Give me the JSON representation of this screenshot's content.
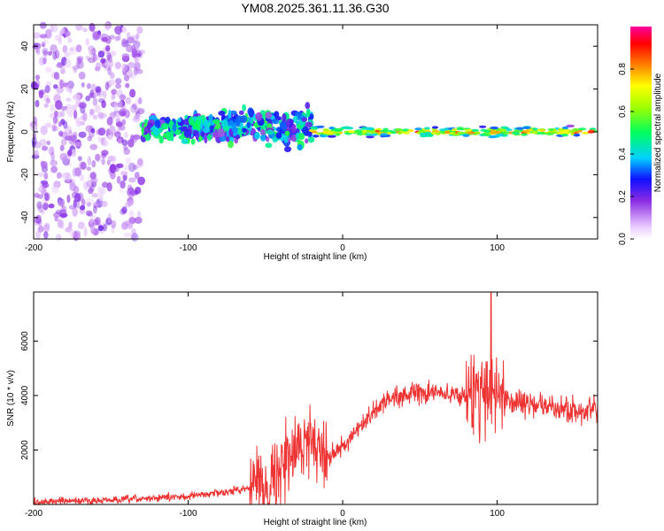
{
  "title": "YM08.2025.361.11.36.G30",
  "chart_data": [
    {
      "type": "heatmap",
      "name": "spectrogram",
      "xlabel": "Height of straight line (km)",
      "ylabel": "Frequency (Hz)",
      "xlim": [
        -200,
        165
      ],
      "ylim": [
        -50,
        50
      ],
      "xticks": [
        -200,
        -100,
        0,
        100
      ],
      "yticks": [
        -40,
        -20,
        0,
        20,
        40
      ],
      "signal_band": [
        {
          "x_start": -200,
          "x_end": -130,
          "center_hz": 0,
          "spread_hz": 50,
          "amplitude": 0.12
        },
        {
          "x_start": -130,
          "x_end": -20,
          "center_hz": 2,
          "spread_hz": 8,
          "amplitude": 0.3
        },
        {
          "x_start": -20,
          "x_end": 165,
          "center_hz": 0,
          "spread_hz": 2,
          "amplitude": 0.85
        }
      ],
      "colorbar": {
        "label": "Normalized spectral amplitude",
        "range": [
          0,
          1
        ],
        "ticks": [
          0.0,
          0.2,
          0.4,
          0.6,
          0.8
        ]
      }
    },
    {
      "type": "line",
      "name": "snr",
      "xlabel": "Height of straight line (km)",
      "ylabel": "SNR (10 * v/v)",
      "xlim": [
        -200,
        165
      ],
      "ylim": [
        0,
        7800
      ],
      "xticks": [
        -200,
        -100,
        0,
        100
      ],
      "yticks": [
        2000,
        4000,
        6000
      ],
      "color": "#ee3333",
      "envelope": {
        "x": [
          -200,
          -150,
          -100,
          -70,
          -50,
          -40,
          -30,
          -20,
          -10,
          0,
          10,
          20,
          30,
          40,
          60,
          80,
          90,
          100,
          110,
          120,
          140,
          165
        ],
        "y": [
          100,
          150,
          300,
          500,
          800,
          1300,
          2000,
          2500,
          1800,
          2100,
          2700,
          3400,
          3900,
          4050,
          4100,
          4000,
          4200,
          4100,
          3800,
          3700,
          3500,
          3400
        ]
      },
      "noise_amplitude": [
        {
          "x_start": -200,
          "x_end": -60,
          "amp": 300
        },
        {
          "x_start": -60,
          "x_end": -10,
          "amp": 2800
        },
        {
          "x_start": -10,
          "x_end": 80,
          "amp": 800
        },
        {
          "x_start": 80,
          "x_end": 105,
          "amp": 3500
        },
        {
          "x_start": 105,
          "x_end": 165,
          "amp": 1000
        }
      ],
      "peak": {
        "x": 96,
        "y": 7800
      }
    }
  ]
}
